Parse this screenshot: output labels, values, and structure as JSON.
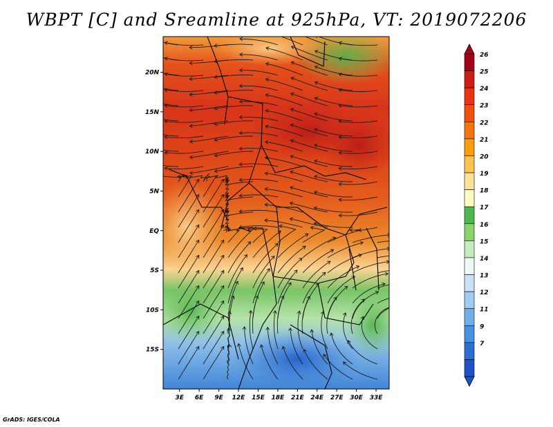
{
  "title": "WBPT [C] and Sreamline at 925hPa, VT: 2019072206",
  "footer": "GrADS: IGES/COLA",
  "map": {
    "region": "Central and Southern Africa",
    "variable": "Wet-bulb potential temperature",
    "units": "C",
    "level": "925hPa",
    "valid_time": "2019072206",
    "lat_labels": [
      "20N",
      "15N",
      "10N",
      "5N",
      "EQ",
      "5S",
      "10S",
      "15S"
    ],
    "lat_values": [
      20,
      15,
      10,
      5,
      0,
      -5,
      -10,
      -15
    ],
    "lon_labels": [
      "3E",
      "6E",
      "9E",
      "12E",
      "15E",
      "18E",
      "21E",
      "24E",
      "27E",
      "30E",
      "33E"
    ],
    "lon_values": [
      3,
      6,
      9,
      12,
      15,
      18,
      21,
      24,
      27,
      30,
      33
    ],
    "lat_range": [
      -20,
      24.5
    ],
    "lon_range": [
      0.5,
      35
    ]
  },
  "colorbar": {
    "labels": [
      "26",
      "25",
      "24",
      "23",
      "22",
      "21",
      "20",
      "19",
      "18",
      "17",
      "16",
      "15",
      "14",
      "13",
      "12",
      "11",
      "9",
      "7"
    ],
    "colors": [
      "#a5001a",
      "#cc1e12",
      "#e6350f",
      "#f0500f",
      "#f5740c",
      "#f99d0c",
      "#fdc351",
      "#fde19a",
      "#fefbc1",
      "#4db84d",
      "#88d46b",
      "#c3ebc0",
      "#eef9f6",
      "#c9e2f5",
      "#9dcdf1",
      "#6fb0e8",
      "#4692de",
      "#2a6ed4",
      "#1e52c8"
    ],
    "arrow_top": "#a5001a",
    "arrow_bottom": "#1e52c8"
  }
}
